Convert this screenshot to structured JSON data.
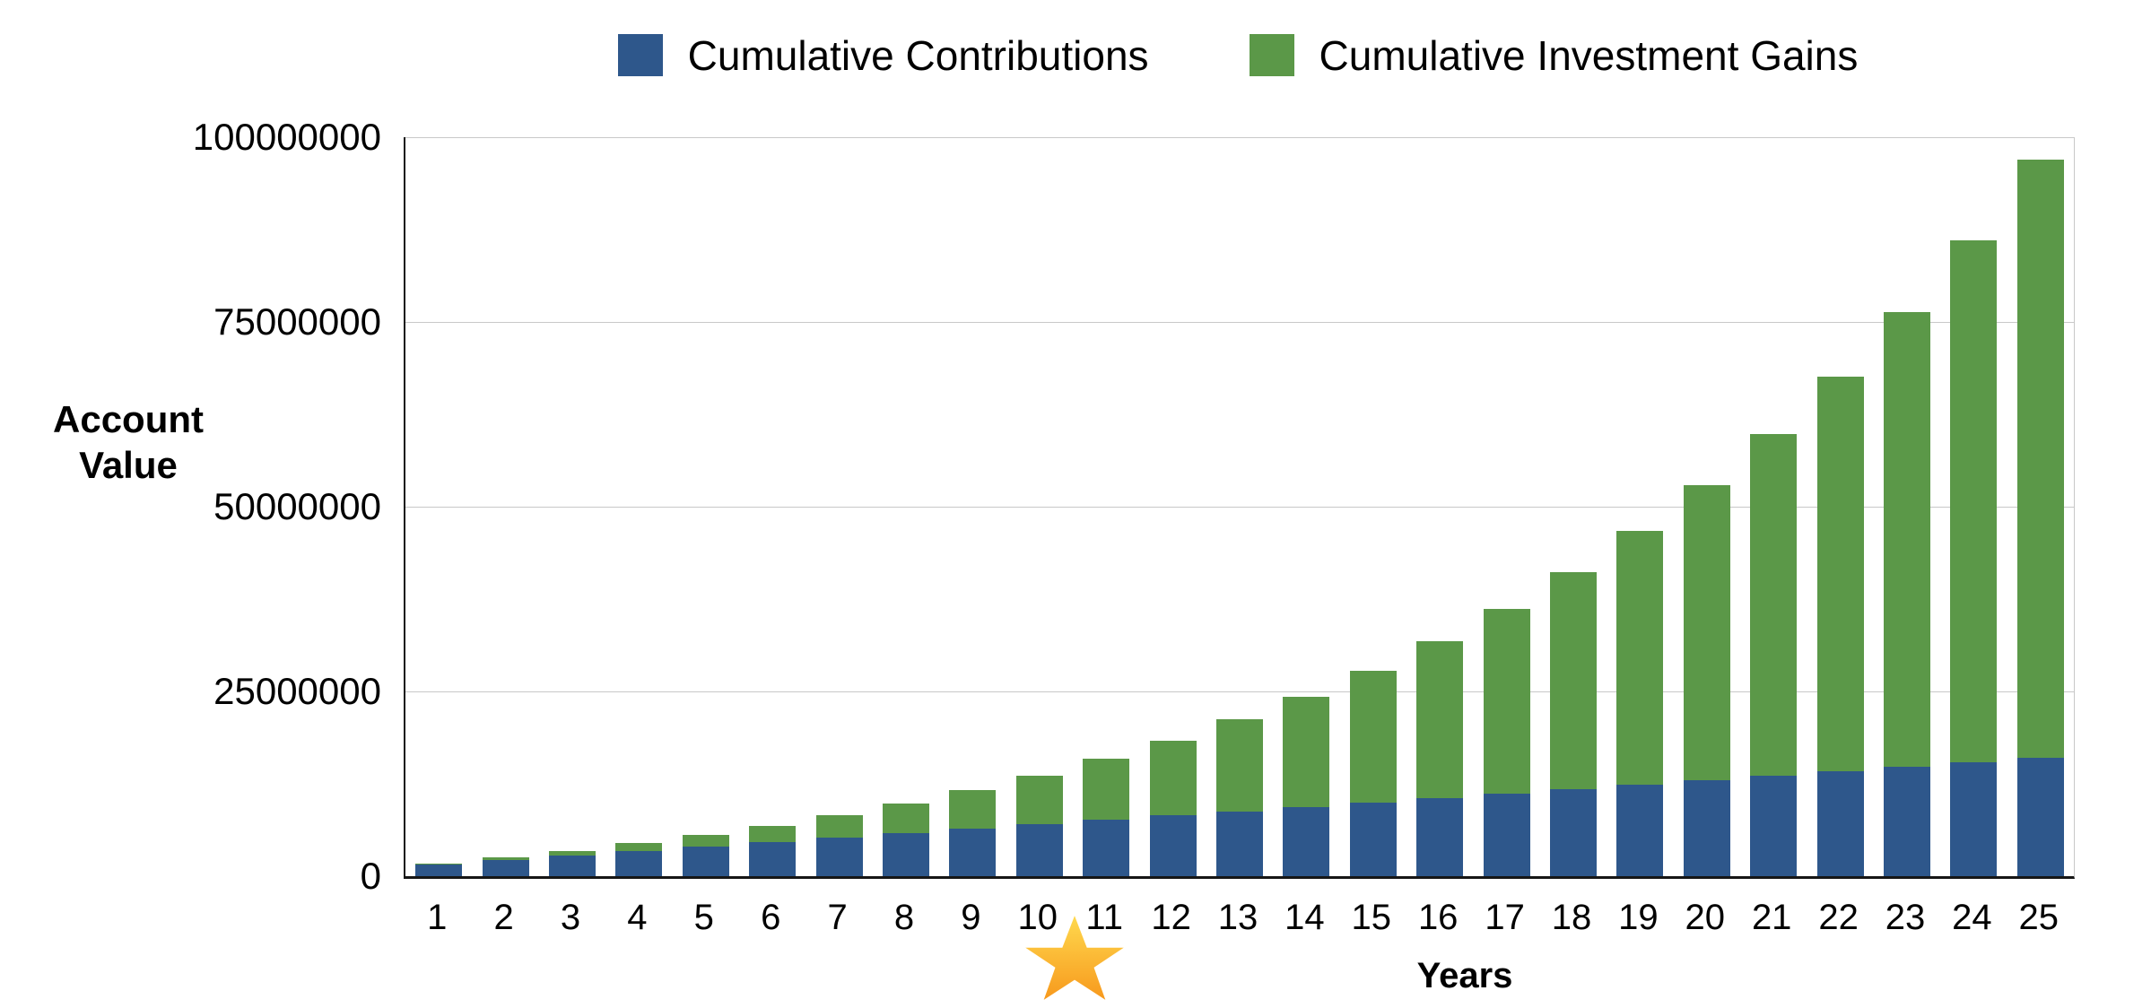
{
  "chart_data": {
    "type": "bar",
    "stacked": true,
    "title": "",
    "xlabel": "Years",
    "ylabel": "Account Value",
    "ylim": [
      0,
      100000000
    ],
    "yticks": [
      {
        "value": 0,
        "label": "0"
      },
      {
        "value": 25000000,
        "label": "25000000"
      },
      {
        "value": 50000000,
        "label": "50000000"
      },
      {
        "value": 75000000,
        "label": "75000000"
      },
      {
        "value": 100000000,
        "label": "100000000"
      }
    ],
    "grid": true,
    "legend_position": "top-center",
    "categories": [
      1,
      2,
      3,
      4,
      5,
      6,
      7,
      8,
      9,
      10,
      11,
      12,
      13,
      14,
      15,
      16,
      17,
      18,
      19,
      20,
      21,
      22,
      23,
      24,
      25
    ],
    "series": [
      {
        "name": "Cumulative Contributions",
        "color": "#2E578B",
        "values": [
          1600000,
          2200000,
          2800000,
          3400000,
          4000000,
          4600000,
          5200000,
          5800000,
          6400000,
          7000000,
          7600000,
          8200000,
          8800000,
          9400000,
          10000000,
          10600000,
          11200000,
          11800000,
          12400000,
          13000000,
          13600000,
          14200000,
          14800000,
          15400000,
          16000000
        ]
      },
      {
        "name": "Cumulative Investment Gains",
        "color": "#5B9848",
        "values": [
          120000,
          326400,
          629568,
          1041116,
          1574050,
          2242936,
          3064088,
          4055779,
          5238473,
          6635089,
          8271300,
          10175856,
          12380959,
          14922674,
          17841395,
          21182362,
          24996245,
          29339795,
          34276570,
          39877759,
          46223090,
          53401860,
          61514084,
          70671774,
          81000386
        ]
      }
    ],
    "totals": [
      1720000,
      2526400,
      3429568,
      4441116,
      5574050,
      6842936,
      8264088,
      9855779,
      11638473,
      13635089,
      15871300,
      18375856,
      21180959,
      24322674,
      27841395,
      31782362,
      36196245,
      41139795,
      46676570,
      52877759,
      59823090,
      67601860,
      76314084,
      86071774,
      97000386
    ],
    "annotations": [
      {
        "type": "star-marker",
        "position": "below x-axis between year 10 and year 11",
        "color_top": "#FFD94E",
        "color_bottom": "#F7991D"
      }
    ]
  },
  "colors": {
    "contributions": "#2E578B",
    "gains": "#5B9848",
    "gridline": "#c8c8c8",
    "axis": "#161616",
    "background": "#ffffff"
  }
}
